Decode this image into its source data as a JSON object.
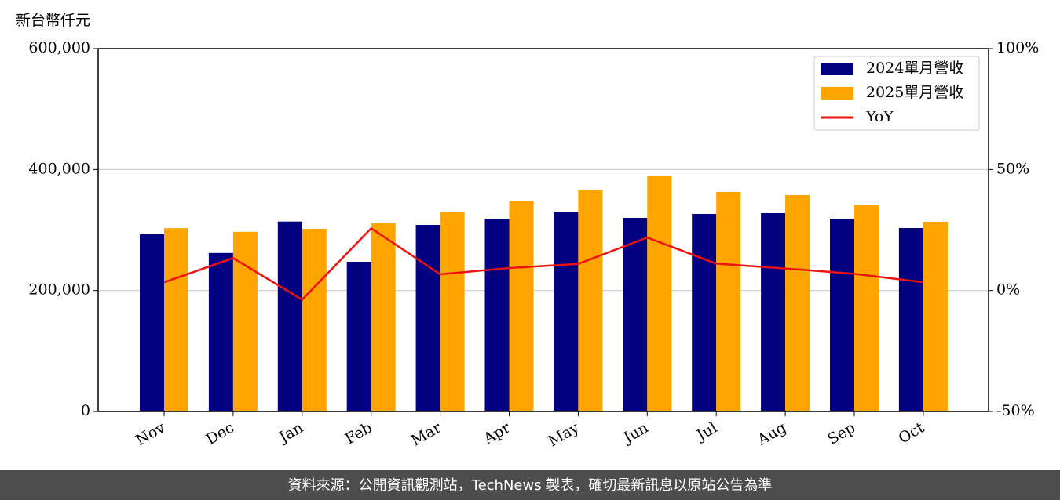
{
  "chart_data": {
    "type": "bar",
    "y_label": "新台幣仟元",
    "categories": [
      "Nov",
      "Dec",
      "Jan",
      "Feb",
      "Mar",
      "Apr",
      "May",
      "Jun",
      "Jul",
      "Aug",
      "Sep",
      "Oct"
    ],
    "series": [
      {
        "name": "2024單月營收",
        "type": "bar",
        "color": "#000080",
        "values": [
          293000,
          262000,
          314000,
          247500,
          308400,
          318800,
          329200,
          320100,
          326600,
          327900,
          318800,
          303200
        ]
      },
      {
        "name": "2025單月營收",
        "type": "bar",
        "color": "#ffa500",
        "values": [
          303000,
          297000,
          302000,
          311000,
          329200,
          348600,
          365400,
          390100,
          362900,
          357700,
          340800,
          313600
        ]
      },
      {
        "name": "YoY",
        "type": "line",
        "axis": "y2",
        "color": "#ee1111",
        "values": [
          3.4,
          13.4,
          -3.8,
          25.7,
          6.7,
          9.3,
          11.0,
          21.9,
          11.1,
          9.1,
          6.9,
          3.4
        ]
      }
    ],
    "ylim": [
      0,
      600000
    ],
    "yticks": [
      0,
      {
        "value": 200000,
        "label": "200,000"
      },
      {
        "value": 400000,
        "label": "400,000"
      },
      {
        "value": 600000,
        "label": "600,000"
      }
    ],
    "y2lim": [
      -50,
      100
    ],
    "y2ticks": [
      {
        "value": -50,
        "label": "-50%"
      },
      {
        "value": 0,
        "label": "0%"
      },
      {
        "value": 50,
        "label": "50%"
      },
      {
        "value": 100,
        "label": "100%"
      }
    ],
    "grid": true,
    "legend": "upper right"
  },
  "footer": "資料來源：公開資訊觀測站，TechNews 製表，確切最新訊息以原站公告為準"
}
